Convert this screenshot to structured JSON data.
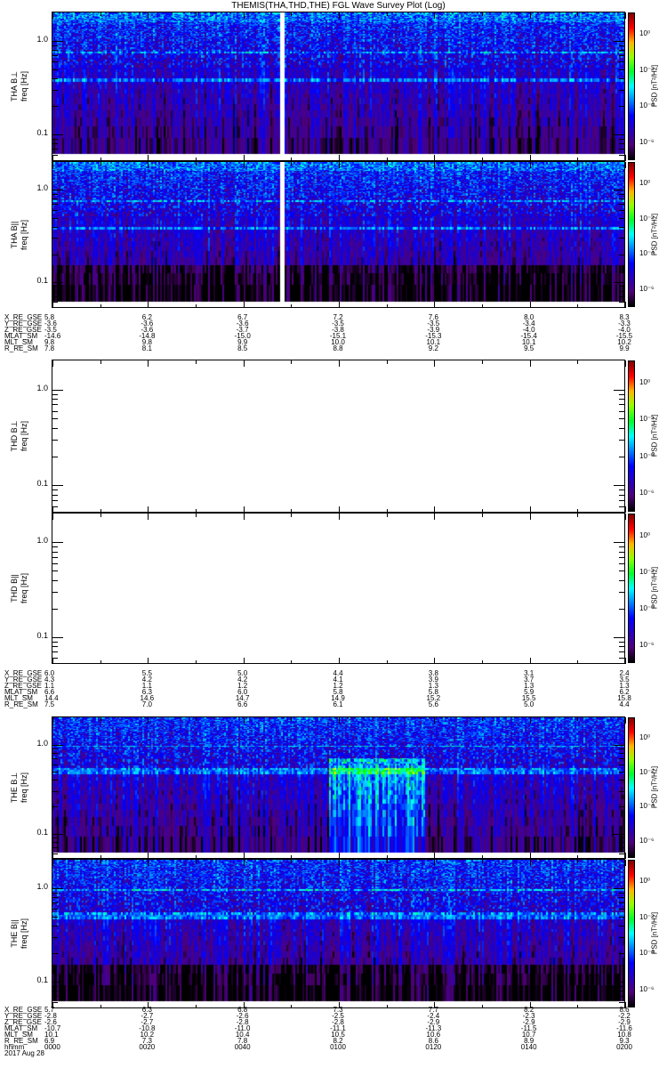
{
  "chart_data": {
    "type": "heatmap",
    "title": "THEMIS(THA,THD,THE) FGL Wave Survey Plot (Log)",
    "xlabel": "hhmm",
    "date": "2017 Aug 28",
    "x_ticks": [
      "0000",
      "0020",
      "0040",
      "0100",
      "0120",
      "0140",
      "0200"
    ],
    "xlim": [
      "0000",
      "0200"
    ],
    "ylim": [
      0.0507,
      2.02
    ],
    "y_ticks": [
      "1.0",
      "0.1"
    ],
    "colorbar": {
      "label": "PSD [nT²/Hz]",
      "ticks": [
        "10⁰",
        "10⁻²",
        "10⁻⁴",
        "10⁻⁶"
      ],
      "range_log10": [
        -7,
        1.2
      ],
      "colormap": "rainbow"
    },
    "panels": [
      {
        "probe": "THA",
        "name": "THA B⊥",
        "ylabel": "freq [Hz]",
        "has_data": true,
        "gap_minutes": [
          47.5,
          48.8
        ]
      },
      {
        "probe": "THA",
        "name": "THA B||",
        "ylabel": "freq [Hz]",
        "has_data": true,
        "gap_minutes": [
          47.5,
          48.8
        ]
      },
      {
        "probe": "THD",
        "name": "THD B⊥",
        "ylabel": "freq [Hz]",
        "has_data": false
      },
      {
        "probe": "THD",
        "name": "THD B||",
        "ylabel": "freq [Hz]",
        "has_data": false
      },
      {
        "probe": "THE",
        "name": "THE B⊥",
        "ylabel": "freq [Hz]",
        "has_data": true,
        "burst_minutes": [
          58,
          78
        ]
      },
      {
        "probe": "THE",
        "name": "THE B||",
        "ylabel": "freq [Hz]",
        "has_data": true
      }
    ],
    "ephemeris": [
      {
        "probe": "THA",
        "rows": [
          {
            "name": "X_RE_GSE",
            "values": [
              "5.8",
              "6.2",
              "6.7",
              "7.2",
              "7.6",
              "8.0",
              "8.3"
            ]
          },
          {
            "name": "Y_RE_GSE",
            "values": [
              "-3.6",
              "-3.6",
              "-3.6",
              "-3.5",
              "-3.5",
              "-3.4",
              "-3.3"
            ]
          },
          {
            "name": "Z_RE_GSE",
            "values": [
              "-3.5",
              "-3.6",
              "-3.7",
              "-3.8",
              "-3.9",
              "-4.0",
              "-4.0"
            ]
          },
          {
            "name": "MLAT_SM",
            "values": [
              "-14.6",
              "-14.8",
              "-15.0",
              "-15.1",
              "-15.3",
              "-15.4",
              "-15.5"
            ]
          },
          {
            "name": "MLT_SM",
            "values": [
              "9.8",
              "9.8",
              "9.9",
              "10.0",
              "10.1",
              "10.1",
              "10.2"
            ]
          },
          {
            "name": "R_RE_SM",
            "values": [
              "7.8",
              "8.1",
              "8.5",
              "8.8",
              "9.2",
              "9.5",
              "9.9"
            ]
          }
        ]
      },
      {
        "probe": "THD",
        "rows": [
          {
            "name": "X_RE_GSE",
            "values": [
              "6.0",
              "5.5",
              "5.0",
              "4.4",
              "3.8",
              "3.1",
              "2.4"
            ]
          },
          {
            "name": "Y_RE_GSE",
            "values": [
              "4.3",
              "4.2",
              "4.2",
              "4.1",
              "3.9",
              "3.7",
              "3.5"
            ]
          },
          {
            "name": "Z_RE_GSE",
            "values": [
              "1.1",
              "1.1",
              "1.2",
              "1.2",
              "1.3",
              "1.3",
              "1.3"
            ]
          },
          {
            "name": "MLAT_SM",
            "values": [
              "6.6",
              "6.3",
              "6.0",
              "5.8",
              "5.8",
              "5.9",
              "6.2"
            ]
          },
          {
            "name": "MLT_SM",
            "values": [
              "14.4",
              "14.6",
              "14.7",
              "14.9",
              "15.2",
              "15.5",
              "15.8"
            ]
          },
          {
            "name": "R_RE_SM",
            "values": [
              "7.5",
              "7.0",
              "6.6",
              "6.1",
              "5.6",
              "5.0",
              "4.4"
            ]
          }
        ]
      },
      {
        "probe": "THE",
        "rows": [
          {
            "name": "X_RE_GSE",
            "values": [
              "5.7",
              "6.3",
              "6.8",
              "7.3",
              "7.7",
              "8.2",
              "8.6"
            ]
          },
          {
            "name": "Y_RE_GSE",
            "values": [
              "-2.8",
              "-2.7",
              "-2.6",
              "-2.5",
              "-2.4",
              "-2.3",
              "-2.2"
            ]
          },
          {
            "name": "Z_RE_GSE",
            "values": [
              "-2.6",
              "-2.7",
              "-2.8",
              "-2.8",
              "-2.9",
              "-2.9",
              "-2.9"
            ]
          },
          {
            "name": "MLAT_SM",
            "values": [
              "-10.7",
              "-10.8",
              "-11.0",
              "-11.1",
              "-11.3",
              "-11.5",
              "-11.6"
            ]
          },
          {
            "name": "MLT_SM",
            "values": [
              "10.1",
              "10.2",
              "10.4",
              "10.5",
              "10.6",
              "10.7",
              "10.8"
            ]
          },
          {
            "name": "R_RE_SM",
            "values": [
              "6.9",
              "7.3",
              "7.8",
              "8.2",
              "8.6",
              "8.9",
              "9.3"
            ]
          }
        ]
      }
    ]
  }
}
